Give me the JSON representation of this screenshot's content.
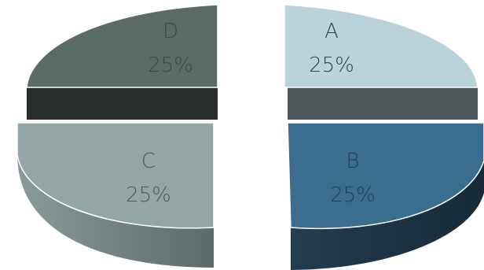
{
  "chart_data": {
    "type": "pie",
    "style": "3d-exploded",
    "title": "",
    "legend": "none",
    "slices": [
      {
        "label": "A",
        "value": 25,
        "value_label": "25%",
        "color": "#b9d3d8",
        "side_color": "#4e575a",
        "label_color": "#3b4144"
      },
      {
        "label": "B",
        "value": 25,
        "value_label": "25%",
        "color": "#3b6d8e",
        "side_color": "#1f3948",
        "label_color": "#263f52"
      },
      {
        "label": "C",
        "value": 25,
        "value_label": "25%",
        "color": "#93a6a6",
        "side_color": "#6f7f80",
        "label_color": "#4b585a"
      },
      {
        "label": "D",
        "value": 25,
        "value_label": "25%",
        "color": "#5a6a66",
        "side_color": "#282e2d",
        "label_color": "#3e4845"
      }
    ]
  }
}
